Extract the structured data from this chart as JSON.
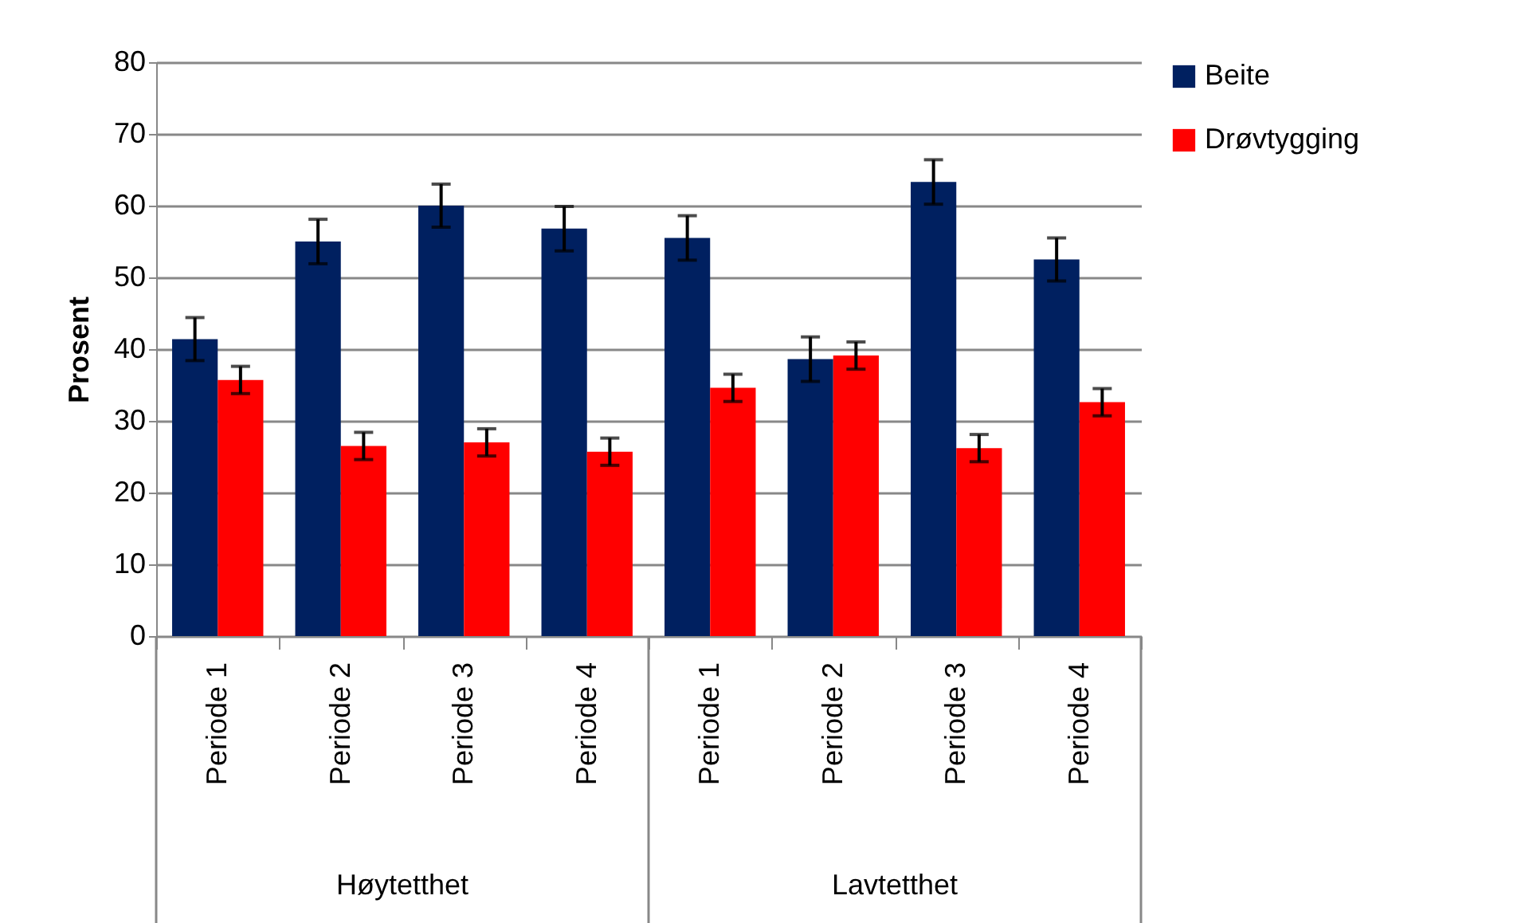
{
  "chart_data": {
    "type": "bar",
    "ylabel": "Prosent",
    "categories": [
      "Periode 1",
      "Periode 2",
      "Periode 3",
      "Periode 4",
      "Periode 1",
      "Periode 2",
      "Periode 3",
      "Periode 4"
    ],
    "series": [
      {
        "name": "Beite",
        "color": "#002060",
        "values": [
          41.4,
          55.0,
          60.0,
          56.8,
          55.5,
          38.6,
          63.3,
          52.5
        ],
        "errors": [
          3,
          3.1,
          3,
          3.1,
          3.1,
          3.1,
          3.1,
          3
        ]
      },
      {
        "name": "Drøvtygging",
        "color": "#ff0000",
        "values": [
          35.7,
          26.5,
          27.0,
          25.7,
          34.6,
          39.1,
          26.2,
          32.6
        ],
        "errors": [
          1.9,
          1.9,
          1.9,
          1.9,
          1.9,
          1.9,
          1.9,
          1.9
        ]
      }
    ],
    "annotations": [
      "Høytetthet",
      "Lavtetthet"
    ],
    "ylim": [
      0,
      80
    ],
    "yticks": [
      0,
      10,
      20,
      30,
      40,
      50,
      60,
      70,
      80
    ],
    "grid": "y",
    "legend": "right"
  }
}
